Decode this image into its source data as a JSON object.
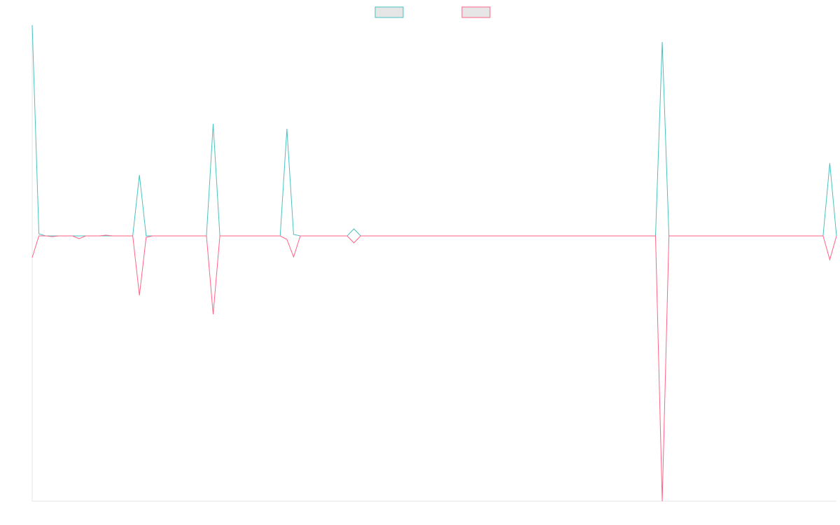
{
  "chart_data": {
    "type": "line",
    "categories": [
      null,
      null,
      null,
      null,
      null,
      null,
      null,
      null,
      null,
      null,
      null,
      null,
      null,
      null,
      null,
      null,
      null,
      null,
      null,
      null,
      null,
      null,
      null,
      null,
      null,
      null,
      null,
      null,
      null,
      null,
      null,
      null,
      null,
      null,
      null,
      null,
      null,
      null,
      null,
      null,
      null,
      null,
      null,
      null,
      null,
      null,
      null,
      null,
      null,
      null,
      null,
      null,
      null,
      null,
      null,
      null,
      null,
      null,
      null,
      null,
      null,
      null,
      null,
      null,
      null,
      null,
      null,
      null,
      null,
      null,
      null,
      null,
      null,
      null,
      null,
      null,
      null,
      null,
      null,
      null,
      null,
      null,
      null,
      null,
      null,
      null,
      null,
      null,
      null,
      null,
      null,
      null,
      null,
      null,
      null,
      null,
      null,
      null,
      null,
      null,
      null,
      null,
      null,
      null,
      null,
      null,
      null,
      null,
      null,
      null,
      null,
      null,
      null,
      null,
      null,
      null,
      null,
      null,
      null,
      null,
      null
    ],
    "series": [
      {
        "color": "#4bc0c0",
        "values": [
          301,
          3,
          0,
          0,
          0,
          0,
          0,
          0,
          0,
          0,
          0,
          0,
          0,
          0,
          0,
          0,
          87,
          0,
          0,
          0,
          0,
          0,
          0,
          0,
          0,
          0,
          0,
          160,
          0,
          0,
          0,
          0,
          0,
          0,
          0,
          0,
          0,
          0,
          153,
          2,
          0,
          0,
          0,
          0,
          0,
          0,
          0,
          0,
          10,
          0,
          0,
          0,
          0,
          0,
          0,
          0,
          0,
          0,
          0,
          0,
          0,
          0,
          0,
          0,
          0,
          0,
          0,
          0,
          0,
          0,
          0,
          0,
          0,
          0,
          0,
          0,
          0,
          0,
          0,
          0,
          0,
          0,
          0,
          0,
          0,
          0,
          0,
          0,
          0,
          0,
          0,
          0,
          0,
          0,
          277,
          0,
          0,
          0,
          0,
          0,
          0,
          0,
          0,
          0,
          0,
          0,
          0,
          0,
          0,
          0,
          0,
          0,
          0,
          0,
          0,
          0,
          0,
          0,
          0,
          104,
          0
        ]
      },
      {
        "color": "#ff6384",
        "values": [
          -31,
          0,
          0,
          -1,
          0,
          0,
          0,
          -4,
          0,
          0,
          0,
          1,
          0,
          0,
          0,
          0,
          -85,
          -2,
          0,
          0,
          0,
          0,
          0,
          0,
          0,
          0,
          0,
          -112,
          0,
          0,
          0,
          0,
          0,
          0,
          0,
          0,
          0,
          0,
          -5,
          -30,
          0,
          0,
          0,
          0,
          0,
          0,
          0,
          0,
          -10,
          0,
          0,
          0,
          0,
          0,
          0,
          0,
          0,
          0,
          0,
          0,
          0,
          0,
          0,
          0,
          0,
          0,
          0,
          0,
          0,
          0,
          0,
          0,
          0,
          0,
          0,
          0,
          0,
          0,
          0,
          0,
          0,
          0,
          0,
          0,
          0,
          0,
          0,
          0,
          0,
          0,
          0,
          0,
          0,
          0,
          -379,
          0,
          0,
          0,
          0,
          0,
          0,
          0,
          0,
          0,
          0,
          0,
          0,
          0,
          0,
          0,
          0,
          0,
          0,
          0,
          0,
          0,
          0,
          0,
          0,
          -34,
          0
        ]
      }
    ],
    "ylim": [
      -379,
      301
    ],
    "grid": false,
    "legend": "top"
  }
}
